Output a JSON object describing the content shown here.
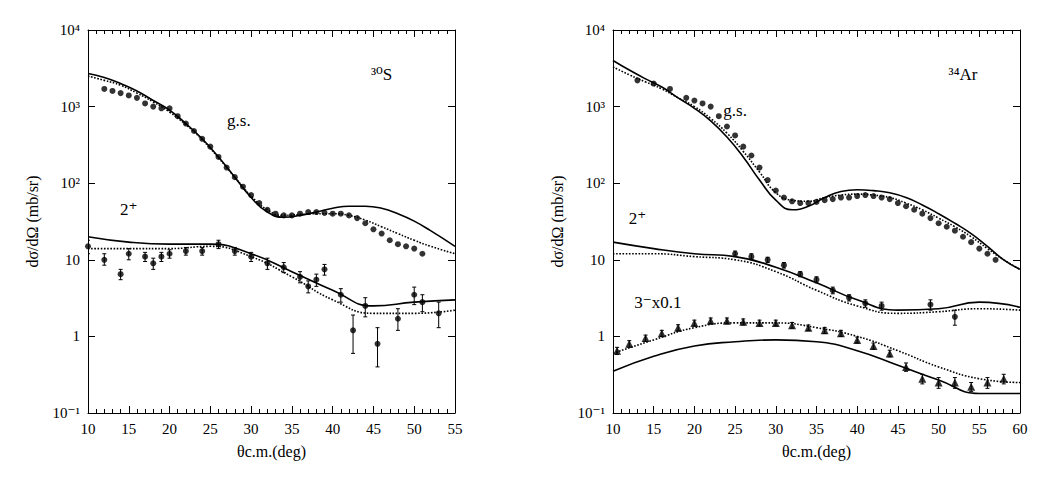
{
  "chart_data": [
    {
      "type": "scatter",
      "x_label": "θc.m.(deg)",
      "y_label": "dσ/dΩ (mb/sr)",
      "log": "y",
      "xlim": [
        10,
        55
      ],
      "xticks": [
        10,
        15,
        20,
        25,
        30,
        35,
        40,
        45,
        50,
        55
      ],
      "ylim": [
        0.1,
        10000
      ],
      "yticks": [
        {
          "value": 0.1,
          "label": "10⁻¹"
        },
        1,
        10,
        {
          "value": 100,
          "label": "10²"
        },
        {
          "value": 1000,
          "label": "10³"
        },
        {
          "value": 10000,
          "label": "10⁴"
        }
      ],
      "annotations": [
        {
          "text": "³⁰S",
          "x": 46,
          "y": 2600
        },
        {
          "text": "g.s.",
          "x": 28.5,
          "y": 650
        },
        {
          "text": "2⁺",
          "x": 15,
          "y": 45
        }
      ],
      "series": [
        {
          "type": "scatter",
          "marker": "circle",
          "color": "#000000",
          "x": [
            12,
            13,
            14,
            15,
            16,
            17,
            18,
            19,
            20,
            21,
            22,
            23,
            24,
            25,
            26,
            27,
            28,
            29,
            30,
            31,
            32,
            33,
            34,
            35,
            36,
            37,
            38,
            39,
            40,
            41,
            42,
            43,
            44,
            45,
            46,
            47,
            48,
            49,
            50,
            51
          ],
          "values": [
            1700,
            1600,
            1500,
            1400,
            1300,
            1100,
            1000,
            950,
            950,
            750,
            600,
            480,
            380,
            300,
            220,
            160,
            120,
            90,
            70,
            55,
            45,
            40,
            38,
            38,
            40,
            42,
            42,
            41,
            40,
            40,
            38,
            35,
            30,
            25,
            22,
            18,
            16,
            15,
            14,
            12
          ]
        },
        {
          "type": "line",
          "line_style": "solid",
          "color": "#000000",
          "x": [
            10,
            12,
            14,
            16,
            18,
            20,
            22,
            24,
            26,
            28,
            30,
            32,
            34,
            36,
            38,
            40,
            42,
            44,
            46,
            48,
            50,
            52,
            55
          ],
          "values": [
            2700,
            2400,
            2000,
            1600,
            1200,
            900,
            600,
            380,
            220,
            120,
            65,
            42,
            36,
            38,
            42,
            47,
            50,
            50,
            47,
            40,
            32,
            24,
            15
          ]
        },
        {
          "type": "line",
          "line_style": "dotted",
          "color": "#000000",
          "x": [
            10,
            12,
            14,
            16,
            18,
            20,
            22,
            24,
            26,
            28,
            30,
            32,
            34,
            36,
            38,
            40,
            42,
            44,
            46,
            48,
            50,
            52,
            55
          ],
          "values": [
            2500,
            2200,
            1900,
            1500,
            1150,
            850,
            580,
            370,
            215,
            120,
            68,
            45,
            38,
            39,
            40,
            40,
            38,
            33,
            27,
            22,
            18,
            15,
            12
          ]
        },
        {
          "type": "scatter",
          "marker": "circle",
          "color": "#000000",
          "x": [
            10,
            12,
            14,
            15,
            17,
            18,
            19,
            20,
            22,
            24,
            26,
            28,
            30,
            32,
            34,
            36,
            37,
            38,
            39,
            41,
            42.5,
            44,
            45.5,
            48,
            50,
            51,
            53
          ],
          "values": [
            15,
            10,
            6.5,
            12,
            11,
            9,
            11,
            12,
            13,
            13,
            16,
            13,
            11,
            9,
            8,
            6,
            4.5,
            5.5,
            7.5,
            3.5,
            1.2,
            2.5,
            0.8,
            1.7,
            3.5,
            2.8,
            2.0
          ],
          "error_low": [
            12,
            8.5,
            5.5,
            10,
            9.5,
            7.5,
            9.5,
            10.5,
            11.5,
            11.5,
            14,
            11.5,
            9.5,
            7.5,
            6.8,
            5,
            3.7,
            4.5,
            6.3,
            2.8,
            0.6,
            1.8,
            0.4,
            1.2,
            2.6,
            2.1,
            1.3
          ],
          "error_high": [
            18,
            12,
            7.5,
            14,
            12.5,
            10.5,
            12.5,
            13.5,
            14.5,
            14.5,
            18,
            14.5,
            12.5,
            10.5,
            9.2,
            7,
            5.3,
            6.5,
            8.7,
            4.2,
            1.9,
            3.2,
            1.3,
            2.3,
            4.4,
            3.5,
            2.8
          ]
        },
        {
          "type": "line",
          "line_style": "solid",
          "color": "#000000",
          "x": [
            10,
            15,
            20,
            25,
            30,
            35,
            40,
            45,
            50,
            55
          ],
          "values": [
            20,
            17,
            16,
            16,
            12,
            7,
            4,
            2.5,
            2.8,
            3
          ]
        },
        {
          "type": "line",
          "line_style": "dotted",
          "color": "#000000",
          "x": [
            10,
            15,
            20,
            25,
            30,
            35,
            40,
            45,
            50,
            55
          ],
          "values": [
            14,
            14,
            14,
            15,
            11,
            6,
            3,
            2,
            2,
            2.2
          ]
        }
      ]
    },
    {
      "type": "scatter",
      "x_label": "θc.m.(deg)",
      "y_label": "dσ/dΩ (mb/sr)",
      "log": "y",
      "xlim": [
        10,
        60
      ],
      "xticks": [
        10,
        15,
        20,
        25,
        30,
        35,
        40,
        45,
        50,
        55,
        60
      ],
      "ylim": [
        0.1,
        10000
      ],
      "yticks": [
        {
          "value": 0.1,
          "label": "10⁻¹"
        },
        1,
        10,
        {
          "value": 100,
          "label": "10²"
        },
        {
          "value": 1000,
          "label": "10³"
        },
        {
          "value": 10000,
          "label": "10⁴"
        }
      ],
      "annotations": [
        {
          "text": "³⁴Ar",
          "x": 53,
          "y": 2600
        },
        {
          "text": "g.s.",
          "x": 25,
          "y": 900
        },
        {
          "text": "2⁺",
          "x": 13,
          "y": 35
        },
        {
          "text": "3⁻x0.1",
          "x": 15.5,
          "y": 2.8
        }
      ],
      "series": [
        {
          "type": "scatter",
          "marker": "circle",
          "color": "#000000",
          "x": [
            13,
            15,
            17,
            19,
            20,
            21,
            22,
            23,
            24,
            25,
            26,
            27,
            28,
            29,
            30,
            31,
            32,
            33,
            34,
            35,
            36,
            37,
            38,
            39,
            40,
            41,
            42,
            43,
            44,
            45,
            46,
            47,
            48,
            49,
            50,
            51,
            52,
            53,
            54,
            55,
            56,
            57
          ],
          "values": [
            2200,
            2000,
            1700,
            1300,
            1200,
            1100,
            1000,
            750,
            550,
            420,
            300,
            230,
            160,
            110,
            80,
            65,
            58,
            55,
            55,
            57,
            60,
            62,
            65,
            65,
            68,
            70,
            68,
            65,
            62,
            55,
            50,
            45,
            40,
            35,
            30,
            27,
            24,
            20,
            17,
            14,
            12,
            10
          ]
        },
        {
          "type": "line",
          "line_style": "solid",
          "color": "#000000",
          "x": [
            10,
            12,
            14,
            16,
            18,
            20,
            22,
            24,
            26,
            28,
            30,
            32,
            34,
            36,
            38,
            40,
            42,
            44,
            46,
            48,
            50,
            52,
            54,
            56,
            58,
            60
          ],
          "values": [
            4000,
            3000,
            2300,
            1800,
            1300,
            950,
            650,
            400,
            220,
            110,
            60,
            45,
            50,
            65,
            78,
            82,
            80,
            75,
            65,
            52,
            40,
            30,
            22,
            15,
            10,
            7.5
          ]
        },
        {
          "type": "line",
          "line_style": "dotted",
          "color": "#000000",
          "x": [
            10,
            12,
            14,
            16,
            18,
            20,
            22,
            24,
            26,
            28,
            30,
            32,
            34,
            36,
            38,
            40,
            42,
            44,
            46,
            48,
            50,
            52,
            54,
            56,
            58,
            60
          ],
          "values": [
            3300,
            2600,
            2100,
            1700,
            1300,
            1000,
            700,
            450,
            260,
            140,
            75,
            60,
            58,
            65,
            70,
            72,
            70,
            65,
            55,
            45,
            35,
            27,
            20,
            14,
            10,
            7.5
          ]
        },
        {
          "type": "scatter",
          "marker": "circle",
          "color": "#000000",
          "x": [
            25,
            27,
            29,
            31,
            33,
            35,
            37,
            39,
            41,
            43,
            49,
            52
          ],
          "values": [
            12,
            11,
            10,
            8.5,
            6.5,
            5.5,
            4,
            3.2,
            2.7,
            2.5,
            2.6,
            1.8
          ],
          "error_low": [
            11,
            10,
            9.2,
            7.8,
            6,
            5,
            3.6,
            2.9,
            2.4,
            2.2,
            2.2,
            1.4
          ],
          "error_high": [
            13,
            12,
            10.8,
            9.2,
            7,
            6,
            4.4,
            3.5,
            3,
            2.8,
            3,
            2.2
          ]
        },
        {
          "type": "line",
          "line_style": "solid",
          "color": "#000000",
          "x": [
            10,
            15,
            20,
            25,
            30,
            35,
            40,
            45,
            50,
            55,
            60
          ],
          "values": [
            17,
            14,
            12,
            11,
            8,
            5,
            3,
            2.2,
            2.3,
            2.8,
            2.4
          ]
        },
        {
          "type": "line",
          "line_style": "dotted",
          "color": "#000000",
          "x": [
            10,
            15,
            20,
            25,
            30,
            35,
            40,
            45,
            50,
            55,
            60
          ],
          "values": [
            12,
            12,
            11,
            10,
            7,
            4,
            2.5,
            2,
            2.1,
            2.3,
            2.2
          ]
        },
        {
          "type": "scatter",
          "marker": "triangle",
          "color": "#000000",
          "x": [
            10.5,
            12,
            14,
            16,
            18,
            20,
            22,
            24,
            26,
            28,
            30,
            32,
            34,
            36,
            38,
            40,
            42,
            44,
            46,
            48,
            50,
            52,
            54,
            56,
            58
          ],
          "values": [
            0.65,
            0.8,
            0.95,
            1.1,
            1.3,
            1.5,
            1.6,
            1.6,
            1.55,
            1.5,
            1.5,
            1.4,
            1.3,
            1.2,
            1.1,
            0.9,
            0.75,
            0.6,
            0.4,
            0.28,
            0.25,
            0.25,
            0.22,
            0.25,
            0.28
          ],
          "error_low": [
            0.58,
            0.72,
            0.86,
            1.0,
            1.18,
            1.37,
            1.46,
            1.46,
            1.41,
            1.37,
            1.37,
            1.28,
            1.19,
            1.09,
            1.0,
            0.82,
            0.68,
            0.54,
            0.35,
            0.24,
            0.21,
            0.21,
            0.19,
            0.21,
            0.24
          ],
          "error_high": [
            0.72,
            0.88,
            1.04,
            1.2,
            1.42,
            1.63,
            1.74,
            1.74,
            1.69,
            1.63,
            1.63,
            1.52,
            1.41,
            1.31,
            1.2,
            0.98,
            0.82,
            0.66,
            0.45,
            0.32,
            0.29,
            0.29,
            0.25,
            0.29,
            0.32
          ]
        },
        {
          "type": "line",
          "line_style": "solid",
          "color": "#000000",
          "x": [
            10,
            15,
            20,
            25,
            30,
            35,
            40,
            45,
            50,
            55,
            60
          ],
          "values": [
            0.35,
            0.55,
            0.75,
            0.85,
            0.9,
            0.85,
            0.65,
            0.42,
            0.27,
            0.18,
            0.18
          ]
        },
        {
          "type": "line",
          "line_style": "dotted",
          "color": "#000000",
          "x": [
            10,
            15,
            20,
            25,
            30,
            35,
            40,
            45,
            50,
            55,
            60
          ],
          "values": [
            0.6,
            0.9,
            1.3,
            1.5,
            1.5,
            1.3,
            1.0,
            0.65,
            0.4,
            0.28,
            0.25
          ]
        }
      ]
    }
  ]
}
